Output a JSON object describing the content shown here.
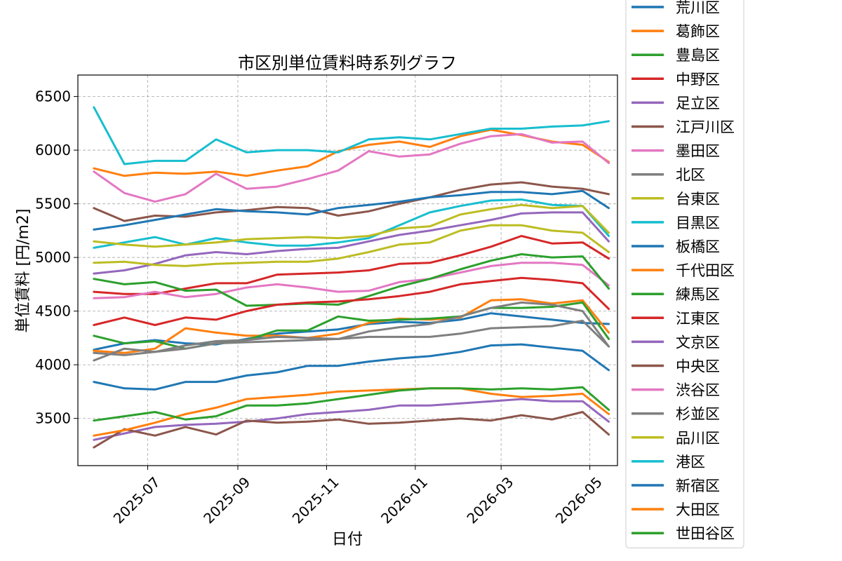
{
  "chart_data": {
    "type": "line",
    "title": "市区別単位賃料時系列グラフ",
    "xlabel": "日付",
    "ylabel": "単位賃料 [円/m2]",
    "x_ticks": [
      "2025-07",
      "2025-09",
      "2025-11",
      "2026-01",
      "2026-03",
      "2026-05"
    ],
    "y_ticks": [
      3500,
      4000,
      4500,
      5000,
      5500,
      6000,
      6500
    ],
    "ylim": [
      3060,
      6700
    ],
    "xlim": [
      "2025-05-14",
      "2026-05-20"
    ],
    "grid": true,
    "legend_position": "right (outside)",
    "x_dates": [
      "2025-05-25",
      "2025-06-15",
      "2025-07-06",
      "2025-07-27",
      "2025-08-17",
      "2025-09-07",
      "2025-09-28",
      "2025-10-19",
      "2025-11-09",
      "2025-11-30",
      "2025-12-21",
      "2026-01-11",
      "2026-02-01",
      "2026-02-22",
      "2026-03-15",
      "2026-04-05",
      "2026-04-26",
      "2026-05-14"
    ],
    "series": [
      {
        "name": "荒川区",
        "color": "#1f77b4",
        "values": [
          4140,
          4200,
          4230,
          4200,
          4190,
          4240,
          4290,
          4310,
          4330,
          4380,
          4400,
          4390,
          4420,
          4480,
          4450,
          4420,
          4390,
          4380
        ]
      },
      {
        "name": "葛飾区",
        "color": "#ff7f0e",
        "values": [
          4130,
          4110,
          4150,
          4340,
          4300,
          4270,
          4270,
          4250,
          4290,
          4390,
          4430,
          4420,
          4440,
          4600,
          4610,
          4570,
          4600,
          4300
        ]
      },
      {
        "name": "豊島区",
        "color": "#2ca02c",
        "values": [
          4270,
          4200,
          4220,
          4150,
          4200,
          4230,
          4320,
          4320,
          4450,
          4410,
          4420,
          4430,
          4450,
          4530,
          4530,
          4540,
          4580,
          4240
        ]
      },
      {
        "name": "中野区",
        "color": "#d62728",
        "values": [
          4680,
          4660,
          4660,
          4710,
          4760,
          4760,
          4840,
          4850,
          4860,
          4880,
          4940,
          4950,
          5020,
          5100,
          5200,
          5130,
          5140,
          4990
        ]
      },
      {
        "name": "足立区",
        "color": "#9467bd",
        "values": [
          4850,
          4880,
          4940,
          5020,
          5050,
          5030,
          5060,
          5080,
          5090,
          5150,
          5210,
          5250,
          5300,
          5350,
          5410,
          5420,
          5420,
          5150
        ]
      },
      {
        "name": "江戸川区",
        "color": "#8c564b",
        "values": [
          5460,
          5340,
          5390,
          5380,
          5420,
          5440,
          5470,
          5460,
          5390,
          5430,
          5500,
          5560,
          5630,
          5680,
          5700,
          5660,
          5640,
          5590
        ]
      },
      {
        "name": "墨田区",
        "color": "#e377c2",
        "values": [
          4620,
          4630,
          4680,
          4630,
          4660,
          4720,
          4750,
          4720,
          4680,
          4690,
          4770,
          4800,
          4860,
          4920,
          4950,
          4950,
          4930,
          4740
        ]
      },
      {
        "name": "北区",
        "color": "#7f7f7f",
        "values": [
          4040,
          4150,
          4120,
          4180,
          4220,
          4230,
          4260,
          4250,
          4240,
          4310,
          4350,
          4380,
          4450,
          4530,
          4580,
          4560,
          4500,
          4170
        ]
      },
      {
        "name": "台東区",
        "color": "#bcbd22",
        "values": [
          4950,
          4960,
          4930,
          4920,
          4940,
          4950,
          4960,
          4960,
          4990,
          5050,
          5120,
          5140,
          5250,
          5300,
          5300,
          5250,
          5230,
          5050
        ]
      },
      {
        "name": "目黒区",
        "color": "#17becf",
        "values": [
          5090,
          5140,
          5190,
          5120,
          5180,
          5140,
          5110,
          5110,
          5140,
          5180,
          5300,
          5420,
          5480,
          5530,
          5540,
          5490,
          5480,
          5200
        ]
      },
      {
        "name": "板橋区",
        "color": "#1f77b4",
        "values": [
          5260,
          5300,
          5350,
          5400,
          5450,
          5430,
          5420,
          5400,
          5460,
          5490,
          5520,
          5560,
          5580,
          5610,
          5610,
          5590,
          5620,
          5460
        ]
      },
      {
        "name": "千代田区",
        "color": "#ff7f0e",
        "values": [
          5830,
          5760,
          5790,
          5780,
          5800,
          5760,
          5810,
          5850,
          5990,
          6050,
          6080,
          6030,
          6130,
          6190,
          6140,
          6080,
          6050,
          5890
        ]
      },
      {
        "name": "練馬区",
        "color": "#2ca02c",
        "values": [
          4800,
          4750,
          4770,
          4690,
          4700,
          4550,
          4560,
          4570,
          4560,
          4640,
          4730,
          4800,
          4890,
          4970,
          5030,
          5000,
          5010,
          4710
        ]
      },
      {
        "name": "江東区",
        "color": "#d62728",
        "values": [
          4370,
          4440,
          4370,
          4440,
          4420,
          4500,
          4560,
          4580,
          4590,
          4610,
          4640,
          4680,
          4750,
          4780,
          4810,
          4790,
          4760,
          4520
        ]
      },
      {
        "name": "文京区",
        "color": "#9467bd",
        "values": [
          3300,
          3360,
          3420,
          3440,
          3450,
          3470,
          3500,
          3540,
          3560,
          3580,
          3620,
          3620,
          3640,
          3660,
          3680,
          3660,
          3660,
          3470
        ]
      },
      {
        "name": "中央区",
        "color": "#8c564b",
        "values": [
          3230,
          3400,
          3340,
          3420,
          3350,
          3480,
          3460,
          3470,
          3490,
          3450,
          3460,
          3480,
          3500,
          3480,
          3530,
          3490,
          3560,
          3350
        ]
      },
      {
        "name": "渋谷区",
        "color": "#e377c2",
        "values": [
          5800,
          5600,
          5520,
          5590,
          5780,
          5640,
          5660,
          5730,
          5810,
          5990,
          5940,
          5960,
          6060,
          6130,
          6150,
          6070,
          6080,
          5880
        ]
      },
      {
        "name": "杉並区",
        "color": "#7f7f7f",
        "values": [
          4110,
          4090,
          4120,
          4150,
          4200,
          4210,
          4220,
          4230,
          4240,
          4260,
          4260,
          4260,
          4290,
          4340,
          4350,
          4360,
          4410,
          4170
        ]
      },
      {
        "name": "品川区",
        "color": "#bcbd22",
        "values": [
          5150,
          5120,
          5100,
          5120,
          5140,
          5170,
          5180,
          5190,
          5180,
          5200,
          5270,
          5290,
          5400,
          5450,
          5490,
          5460,
          5480,
          5230
        ]
      },
      {
        "name": "港区",
        "color": "#17becf",
        "values": [
          6400,
          5870,
          5900,
          5900,
          6100,
          5980,
          6000,
          6000,
          5980,
          6100,
          6120,
          6100,
          6150,
          6200,
          6200,
          6220,
          6230,
          6270
        ]
      },
      {
        "name": "新宿区",
        "color": "#1f77b4",
        "values": [
          3840,
          3780,
          3770,
          3840,
          3840,
          3900,
          3930,
          3990,
          3990,
          4030,
          4060,
          4080,
          4120,
          4180,
          4190,
          4160,
          4130,
          3950
        ]
      },
      {
        "name": "大田区",
        "color": "#ff7f0e",
        "values": [
          3340,
          3390,
          3460,
          3540,
          3600,
          3680,
          3700,
          3720,
          3750,
          3760,
          3770,
          3780,
          3780,
          3730,
          3700,
          3710,
          3730,
          3540
        ]
      },
      {
        "name": "世田谷区",
        "color": "#2ca02c",
        "values": [
          3480,
          3520,
          3560,
          3490,
          3520,
          3620,
          3620,
          3640,
          3680,
          3720,
          3760,
          3780,
          3780,
          3770,
          3780,
          3770,
          3790,
          3580
        ]
      }
    ]
  }
}
